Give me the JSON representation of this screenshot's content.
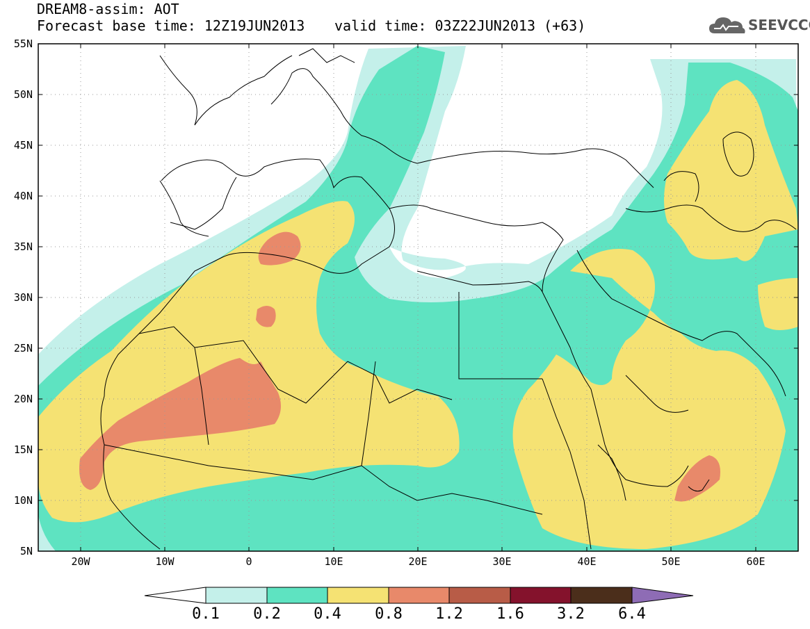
{
  "header": {
    "title": "DREAM8-assim: AOT",
    "base_time": "Forecast base time: 12Z19JUN2013",
    "valid_time": "valid time: 03Z22JUN2013 (+63)"
  },
  "logo": {
    "text": "SEEVCCC",
    "icon": "cloud-icon"
  },
  "map": {
    "variable": "AOT",
    "region": "North Africa, Mediterranean, Middle East",
    "lat_labels": [
      "55N",
      "50N",
      "45N",
      "40N",
      "35N",
      "30N",
      "25N",
      "20N",
      "15N",
      "10N",
      "5N"
    ],
    "lon_labels": [
      "20W",
      "10W",
      "0",
      "10E",
      "20E",
      "30E",
      "40E",
      "50E",
      "60E"
    ],
    "colors": {
      "c01": "#c4f0ea",
      "c02": "#5ee3c1",
      "c04": "#f5e273",
      "c08": "#e8896a",
      "c12": "#b85c47",
      "c16": "#84122c",
      "c32": "#4b2e1b",
      "c64": "#8e6cb5"
    }
  },
  "colorbar": {
    "labels": [
      "0.1",
      "0.2",
      "0.4",
      "0.8",
      "1.2",
      "1.6",
      "3.2",
      "6.4"
    ]
  }
}
